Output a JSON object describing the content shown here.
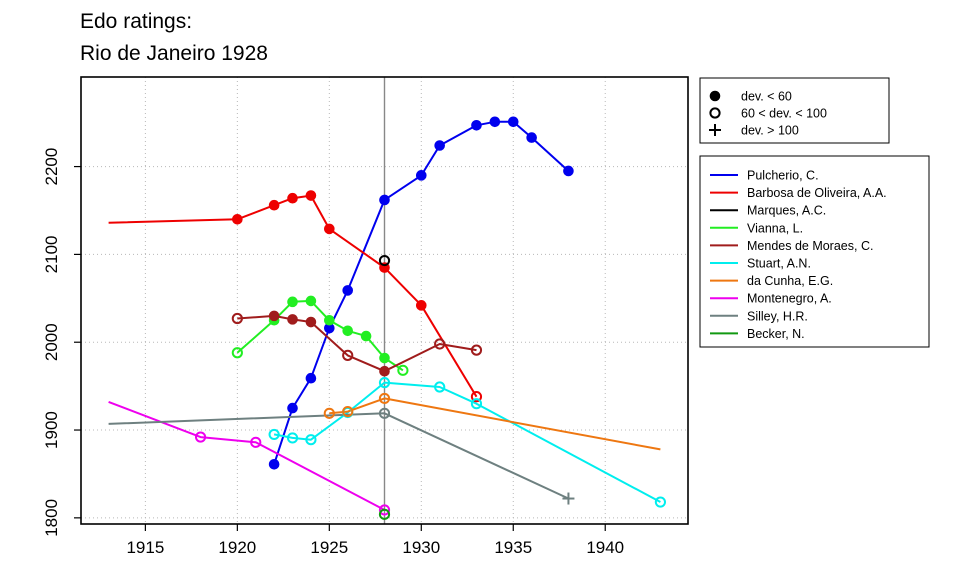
{
  "chart_data": {
    "type": "line",
    "title_lines": [
      "Edo ratings:",
      "Rio de Janeiro 1928"
    ],
    "xlabel": "",
    "ylabel": "",
    "xlim": [
      1911.5,
      1944.5
    ],
    "ylim": [
      1793,
      2302
    ],
    "x_ticks": [
      1915,
      1920,
      1925,
      1930,
      1935,
      1940
    ],
    "y_ticks": [
      1800,
      1900,
      2000,
      2100,
      2200
    ],
    "grid": true,
    "event_year": 1928,
    "marker_legend": [
      {
        "symbol": "filled-circle",
        "label": "dev. < 60"
      },
      {
        "symbol": "open-circle",
        "label": "60 < dev. < 100"
      },
      {
        "symbol": "plus",
        "label": "dev. > 100"
      }
    ],
    "series": [
      {
        "name": "Pulcherio, C.",
        "color": "#0000ee",
        "marker": "filled",
        "x": [
          1922,
          1923,
          1924,
          1925,
          1926,
          1928,
          1930,
          1931,
          1933,
          1934,
          1935,
          1936,
          1938
        ],
        "y": [
          1861,
          1925,
          1959,
          2016,
          2059,
          2162,
          2190,
          2224,
          2247,
          2251,
          2251,
          2233,
          2195
        ]
      },
      {
        "name": "Barbosa de Oliveira, A.A.",
        "color": "#ee0000",
        "marker": "filled",
        "x": [
          1913,
          1920,
          1922,
          1923,
          1924,
          1925,
          1928,
          1930,
          1933
        ],
        "y": [
          2136,
          2140,
          2156,
          2164,
          2167,
          2129,
          2085,
          2042,
          1938
        ],
        "markers": [
          "none",
          "filled",
          "filled",
          "filled",
          "filled",
          "filled",
          "filled",
          "filled",
          "open"
        ]
      },
      {
        "name": "Marques, A.C.",
        "color": "#000000",
        "marker": "open",
        "x": [
          1928
        ],
        "y": [
          2093
        ]
      },
      {
        "name": "Vianna, L.",
        "color": "#22ee22",
        "marker": "filled",
        "x": [
          1920,
          1922,
          1923,
          1924,
          1925,
          1926,
          1927,
          1928,
          1929
        ],
        "y": [
          1988,
          2025,
          2046,
          2047,
          2025,
          2013,
          2007,
          1982,
          1968
        ],
        "markers": [
          "open",
          "filled",
          "filled",
          "filled",
          "filled",
          "filled",
          "filled",
          "filled",
          "open"
        ]
      },
      {
        "name": "Mendes de Moraes, C.",
        "color": "#a01c1c",
        "marker": "filled",
        "x": [
          1920,
          1922,
          1923,
          1924,
          1926,
          1928,
          1931,
          1933
        ],
        "y": [
          2027,
          2030,
          2026,
          2023,
          1985,
          1967,
          1998,
          1991
        ],
        "markers": [
          "open",
          "filled",
          "filled",
          "filled",
          "open",
          "filled",
          "open",
          "open"
        ]
      },
      {
        "name": "Stuart, A.N.",
        "color": "#00eeee",
        "marker": "open",
        "x": [
          1922,
          1923,
          1924,
          1926,
          1928,
          1931,
          1933,
          1943
        ],
        "y": [
          1895,
          1891,
          1889,
          1920,
          1954,
          1949,
          1930,
          1818
        ]
      },
      {
        "name": "da Cunha, E.G.",
        "color": "#ee7711",
        "marker": "open",
        "x": [
          1925,
          1926,
          1928,
          1943
        ],
        "y": [
          1919,
          1921,
          1936,
          1878
        ],
        "markers": [
          "open",
          "open",
          "open",
          "none"
        ]
      },
      {
        "name": "Montenegro, A.",
        "color": "#ee00ee",
        "marker": "open",
        "x": [
          1913,
          1918,
          1921,
          1928
        ],
        "y": [
          1932,
          1892,
          1886,
          1809
        ],
        "markers": [
          "none",
          "open",
          "open",
          "open"
        ]
      },
      {
        "name": "Silley, H.R.",
        "color": "#6e8080",
        "marker": "open",
        "x": [
          1913,
          1928,
          1938
        ],
        "y": [
          1907,
          1919,
          1822
        ],
        "markers": [
          "none",
          "open",
          "plus"
        ]
      },
      {
        "name": "Becker, N.",
        "color": "#119911",
        "marker": "open",
        "x": [
          1928
        ],
        "y": [
          1804
        ]
      }
    ]
  }
}
